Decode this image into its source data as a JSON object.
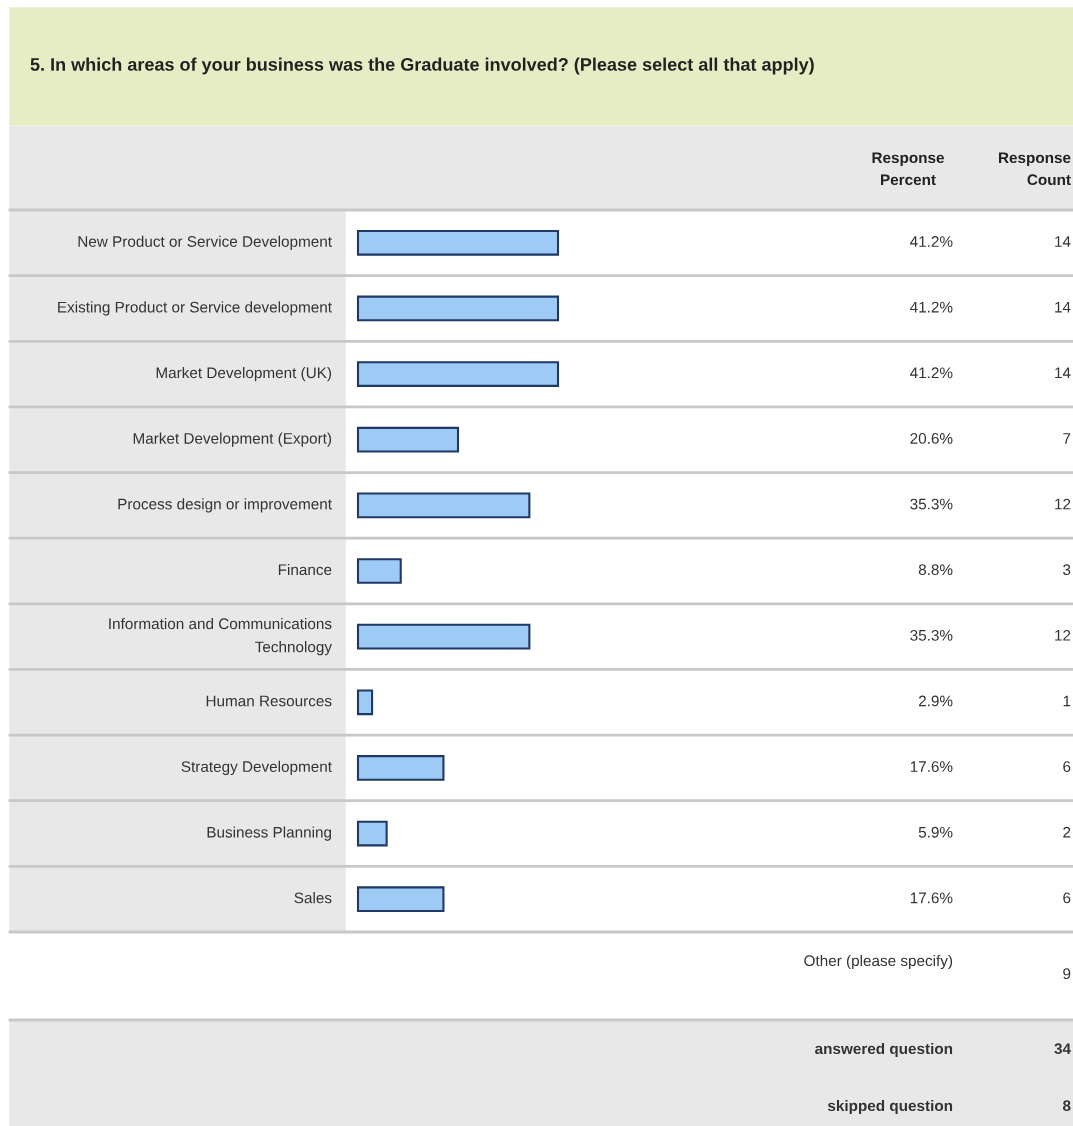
{
  "chart_data": {
    "type": "bar",
    "orientation": "horizontal",
    "title": "5. In which areas of your business was the Graduate involved? (Please select all that apply)",
    "categories": [
      "New Product or Service Development",
      "Existing Product or Service development",
      "Market Development (UK)",
      "Market Development (Export)",
      "Process design or improvement",
      "Finance",
      "Information and Communications Technology",
      "Human Resources",
      "Strategy Development",
      "Business Planning",
      "Sales"
    ],
    "series": [
      {
        "name": "Response Percent",
        "color": "#9ecbf5",
        "values": [
          41.2,
          41.2,
          41.2,
          20.6,
          35.3,
          8.8,
          35.3,
          2.9,
          17.6,
          5.9,
          17.6
        ],
        "value_labels": [
          "41.2%",
          "41.2%",
          "41.2%",
          "20.6%",
          "35.3%",
          "8.8%",
          "35.3%",
          "2.9%",
          "17.6%",
          "5.9%",
          "17.6%"
        ]
      }
    ],
    "annotations": [
      "Response Count",
      "14",
      "14",
      "14",
      "7",
      "12",
      "3",
      "12",
      "1",
      "6",
      "2",
      "6",
      "Other (please specify)",
      "9",
      "answered question",
      "34",
      "skipped question",
      "8"
    ]
  }
}
